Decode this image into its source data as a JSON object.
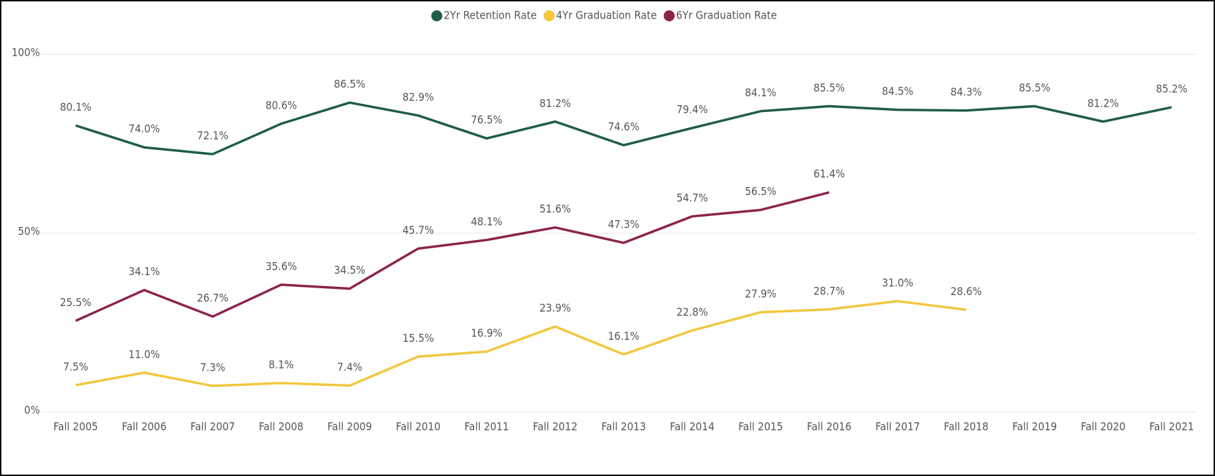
{
  "chart_data": {
    "type": "line",
    "categories": [
      "Fall 2005",
      "Fall 2006",
      "Fall 2007",
      "Fall 2008",
      "Fall 2009",
      "Fall 2010",
      "Fall 2011",
      "Fall 2012",
      "Fall 2013",
      "Fall 2014",
      "Fall 2015",
      "Fall 2016",
      "Fall 2017",
      "Fall 2018",
      "Fall 2019",
      "Fall 2020",
      "Fall 2021"
    ],
    "series": [
      {
        "name": "2Yr Retention Rate",
        "color": "#1f5c4b",
        "values": [
          80.1,
          74.0,
          72.1,
          80.6,
          86.5,
          82.9,
          76.5,
          81.2,
          74.6,
          79.4,
          84.1,
          85.5,
          84.5,
          84.3,
          85.5,
          81.2,
          85.2
        ],
        "value_labels": [
          "80.1%",
          "74.0%",
          "72.1%",
          "80.6%",
          "86.5%",
          "82.9%",
          "76.5%",
          "81.2%",
          "74.6%",
          "79.4%",
          "84.1%",
          "85.5%",
          "84.5%",
          "84.3%",
          "85.5%",
          "81.2%",
          "85.2%"
        ]
      },
      {
        "name": "4Yr Graduation Rate",
        "color": "#f2c73e",
        "values": [
          7.5,
          11.0,
          7.3,
          8.1,
          7.4,
          15.5,
          16.9,
          23.9,
          16.1,
          22.8,
          27.9,
          28.7,
          31.0,
          28.6,
          null,
          null,
          null
        ],
        "value_labels": [
          "7.5%",
          "11.0%",
          "7.3%",
          "8.1%",
          "7.4%",
          "15.5%",
          "16.9%",
          "23.9%",
          "16.1%",
          "22.8%",
          "27.9%",
          "28.7%",
          "31.0%",
          "28.6%",
          null,
          null,
          null
        ]
      },
      {
        "name": "6Yr Graduation Rate",
        "color": "#8b2548",
        "values": [
          25.5,
          34.1,
          26.7,
          35.6,
          34.5,
          45.7,
          48.1,
          51.6,
          47.3,
          54.7,
          56.5,
          61.4,
          null,
          null,
          null,
          null,
          null
        ],
        "value_labels": [
          "25.5%",
          "34.1%",
          "26.7%",
          "35.6%",
          "34.5%",
          "45.7%",
          "48.1%",
          "51.6%",
          "47.3%",
          "54.7%",
          "56.5%",
          "61.4%",
          null,
          null,
          null,
          null,
          null
        ]
      }
    ],
    "ylim": [
      0,
      100
    ],
    "yticks": [
      {
        "value": 0,
        "label": "0%"
      },
      {
        "value": 50,
        "label": "50%"
      },
      {
        "value": 100,
        "label": "100%"
      }
    ],
    "grid": true,
    "legend": "top"
  }
}
